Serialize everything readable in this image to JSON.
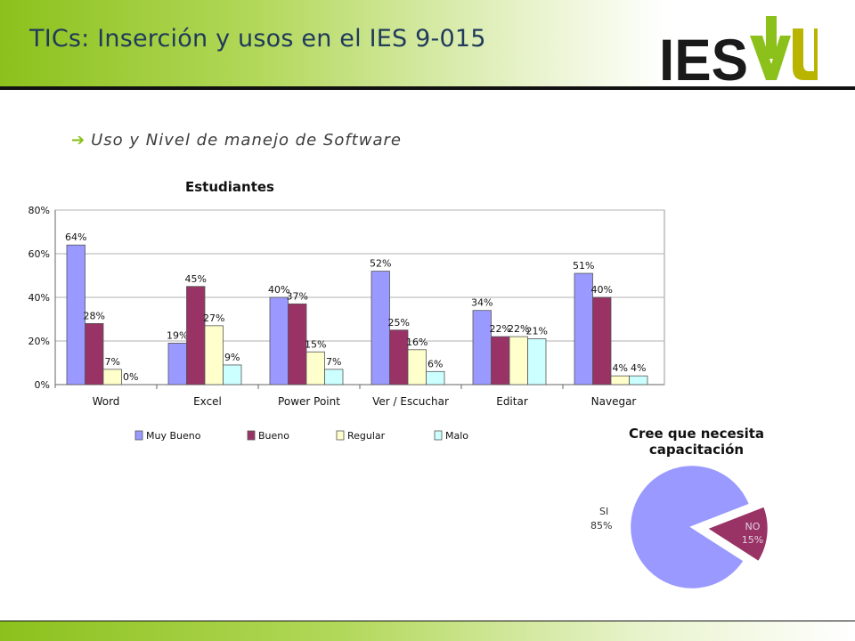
{
  "slide": {
    "title": "TICs: Inserción y usos en el IES 9-015",
    "bullet": "Uso y Nivel de manejo de Software",
    "logo_text": "IESVU",
    "colors": {
      "accent": "#8cc11c",
      "title": "#1f3a5a"
    }
  },
  "chart_data": [
    {
      "type": "bar",
      "title": "Estudiantes",
      "categories": [
        "Word",
        "Excel",
        "Power Point",
        "Ver / Escuchar",
        "Editar",
        "Navegar"
      ],
      "series": [
        {
          "name": "Muy Bueno",
          "color": "#9999ff",
          "values": [
            64,
            19,
            40,
            52,
            34,
            51
          ],
          "labels": [
            "64%",
            "19%",
            "40%",
            "52%",
            "34%",
            "51%"
          ]
        },
        {
          "name": "Bueno",
          "color": "#993366",
          "values": [
            28,
            45,
            37,
            25,
            22,
            40
          ],
          "labels": [
            "28%",
            "45%",
            "37%",
            "25%",
            "22%",
            "40%"
          ]
        },
        {
          "name": "Regular",
          "color": "#ffffcc",
          "values": [
            7,
            27,
            15,
            16,
            22,
            4
          ],
          "labels": [
            "7%",
            "27%",
            "15%",
            "16%",
            "22%",
            "4%"
          ]
        },
        {
          "name": "Malo",
          "color": "#ccffff",
          "values": [
            0,
            9,
            7,
            6,
            21,
            4
          ],
          "labels": [
            "0%",
            "9%",
            "7%",
            "6%",
            "21%",
            "4%"
          ]
        }
      ],
      "yticks": [
        "0%",
        "20%",
        "40%",
        "60%",
        "80%"
      ],
      "ylim": [
        0,
        80
      ],
      "grid": true,
      "legend": "bottom"
    },
    {
      "type": "pie",
      "title": "Cree que necesita capacitación",
      "title_lines": [
        "Cree que necesita",
        "capacitación"
      ],
      "slices": [
        {
          "name": "SI",
          "value": 85,
          "label": "85%",
          "color": "#9999ff"
        },
        {
          "name": "NO",
          "value": 15,
          "label": "15%",
          "color": "#993366",
          "exploded": true
        }
      ]
    }
  ]
}
